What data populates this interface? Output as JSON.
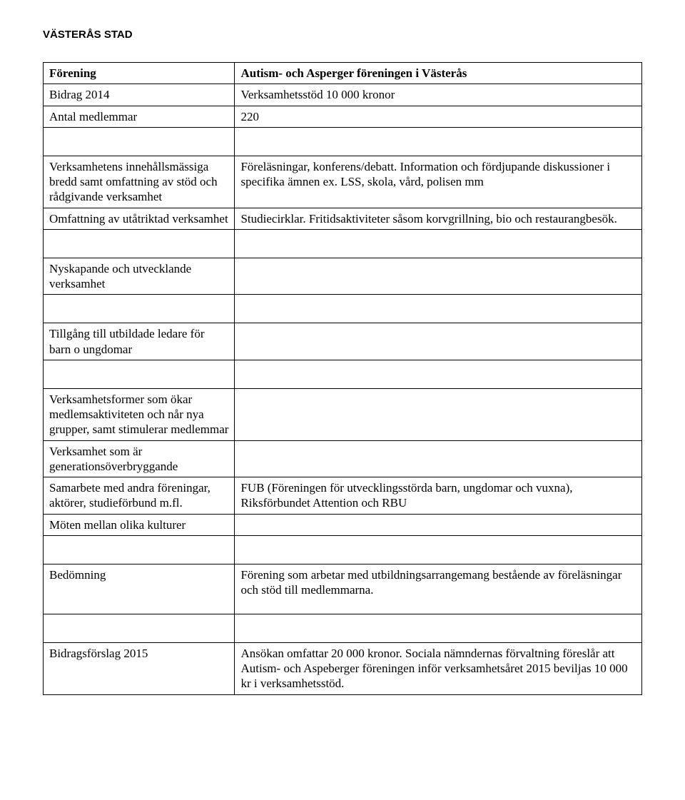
{
  "header": "VÄSTERÅS STAD",
  "title_row": {
    "label": "Förening",
    "value": "Autism- och Asperger föreningen i Västerås"
  },
  "rows": [
    {
      "label": "Bidrag 2014",
      "value": "Verksamhetsstöd 10 000 kronor"
    },
    {
      "label": "Antal medlemmar",
      "value": "220"
    },
    {
      "label": "Verksamhetens innehållsmässiga bredd samt omfattning av stöd och rådgivande verksamhet",
      "value": "Föreläsningar, konferens/debatt. Information och fördjupande diskussioner i specifika ämnen ex. LSS, skola, vård, polisen mm"
    },
    {
      "label": "Omfattning av utåtriktad verksamhet",
      "value": "Studiecirklar. Fritidsaktiviteter såsom korvgrillning, bio och restaurangbesök."
    },
    {
      "label": "Nyskapande och utvecklande verksamhet",
      "value": ""
    },
    {
      "label": "Tillgång till utbildade ledare för barn o ungdomar",
      "value": ""
    },
    {
      "label": "Verksamhetsformer som ökar medlemsaktiviteten och når nya grupper, samt stimulerar medlemmar",
      "value": ""
    },
    {
      "label": "Verksamhet som är generationsöverbryggande",
      "value": ""
    },
    {
      "label": "Samarbete med andra föreningar, aktörer, studieförbund m.fl.",
      "value": "FUB (Föreningen för utvecklingsstörda barn, ungdomar och vuxna), Riksförbundet Attention och RBU"
    },
    {
      "label": "Möten mellan olika kulturer",
      "value": ""
    },
    {
      "label": "Bedömning",
      "value": "Förening som arbetar med utbildningsarrangemang bestående av föreläsningar och stöd till medlemmarna."
    },
    {
      "label": "Bidragsförslag 2015",
      "value": "Ansökan omfattar 20 000 kronor. Sociala nämndernas förvaltning föreslår att Autism- och Aspeberger föreningen inför verksamhetsåret 2015 beviljas 10 000 kr i verksamhetsstöd."
    }
  ]
}
